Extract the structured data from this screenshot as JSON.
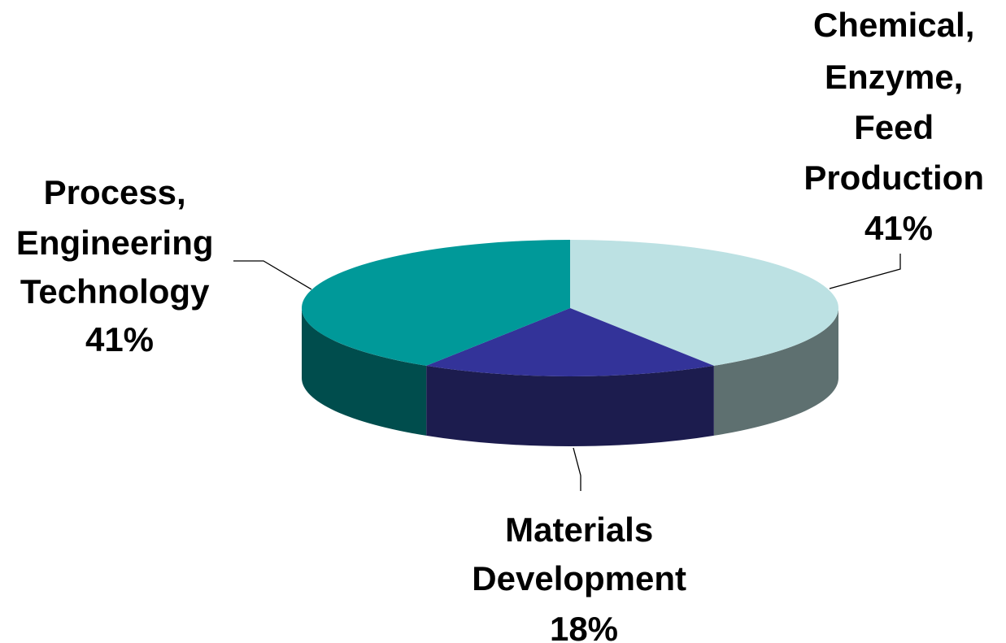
{
  "chart_data": {
    "type": "pie",
    "style": "3d",
    "title": "",
    "slices": [
      {
        "label_lines": [
          "Chemical,",
          "Enzyme,",
          "Feed",
          "Production"
        ],
        "value": 41,
        "value_label": "41%",
        "top_color": "#BCE1E3",
        "side_color": "#5E7070"
      },
      {
        "label_lines": [
          "Materials",
          "Development"
        ],
        "value": 18,
        "value_label": "18%",
        "top_color": "#333399",
        "side_color": "#1C1C4E"
      },
      {
        "label_lines": [
          "Process,",
          "Engineering",
          "Technology"
        ],
        "value": 41,
        "value_label": "41%",
        "top_color": "#009999",
        "side_color": "#004D4D"
      }
    ]
  }
}
